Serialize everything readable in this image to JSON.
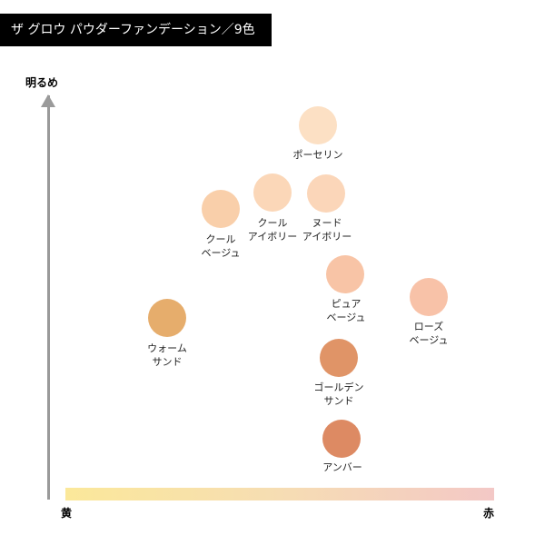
{
  "title": "ザ グロウ パウダーファンデーション／9色",
  "axes": {
    "y_label": "明るめ",
    "x_left_label": "黄",
    "x_right_label": "赤"
  },
  "shades": [
    {
      "id": "porcelain",
      "lines": [
        "ポーセリン"
      ],
      "color": "#fce0c4"
    },
    {
      "id": "cool-beige",
      "lines": [
        "クール",
        "ベージュ"
      ],
      "color": "#f9cfaa"
    },
    {
      "id": "cool-ivory",
      "lines": [
        "クール",
        "アイボリー"
      ],
      "color": "#fbd7b8"
    },
    {
      "id": "nude-ivory",
      "lines": [
        "ヌード",
        "アイボリー"
      ],
      "color": "#fbd6b9"
    },
    {
      "id": "pure-beige",
      "lines": [
        "ピュア",
        "ベージュ"
      ],
      "color": "#f8c4a6"
    },
    {
      "id": "rose-beige",
      "lines": [
        "ローズ",
        "ベージュ"
      ],
      "color": "#f8c2a8"
    },
    {
      "id": "warm-sand",
      "lines": [
        "ウォーム",
        "サンド"
      ],
      "color": "#e6ad6c"
    },
    {
      "id": "golden-sand",
      "lines": [
        "ゴールデン",
        "サンド"
      ],
      "color": "#e09467"
    },
    {
      "id": "amber",
      "lines": [
        "アンバー"
      ],
      "color": "#dd8a63"
    }
  ]
}
